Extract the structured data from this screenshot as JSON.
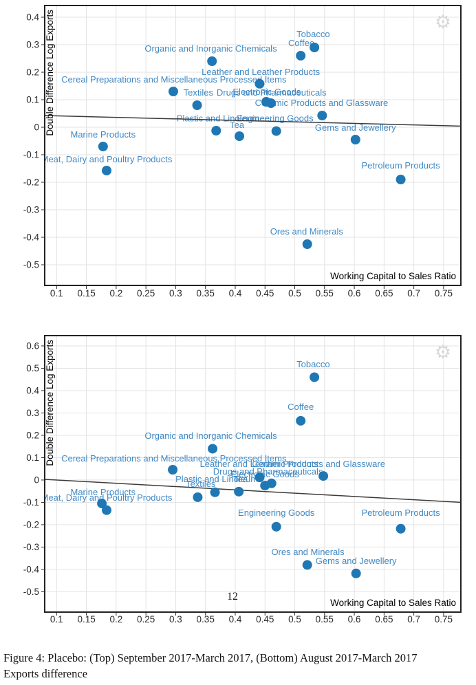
{
  "page": {
    "caption": "Figure 4: Placebo: (Top) September 2017-March 2017, (Bottom) August 2017-March 2017 Exports difference",
    "page_number": "12"
  },
  "icons": {
    "gear_glyph": "⚙"
  },
  "colors": {
    "marker": "#1f77b4",
    "point_label": "#4189c4",
    "trend_line": "#3b3b3b",
    "gridline": "#e3e3e3",
    "plot_border": "#222222",
    "tick_label": "#2a2a2a",
    "axis_title": "#000000",
    "gear": "#d8d8d8",
    "background": "#ffffff"
  },
  "chart_data": [
    {
      "type": "scatter",
      "title": "",
      "ylabel": "Double Difference Log Exports",
      "xlabel": "Working Capital to Sales Ratio",
      "xlim": [
        0.08,
        0.779
      ],
      "ylim": [
        -0.575,
        0.4425
      ],
      "grid": true,
      "xticks": [
        "0.1",
        "0.15",
        "0.2",
        "0.25",
        "0.3",
        "0.35",
        "0.4",
        "0.45",
        "0.5",
        "0.55",
        "0.6",
        "0.65",
        "0.7",
        "0.75"
      ],
      "yticks": [
        "0.4",
        "0.3",
        "0.2",
        "0.1",
        "0",
        "-0.1",
        "-0.2",
        "-0.3",
        "-0.4",
        "-0.5"
      ],
      "trend": {
        "x": [
          0.08,
          0.779
        ],
        "y": [
          0.0425,
          0.004
        ]
      },
      "points": [
        {
          "name": "Tobacco",
          "x": 0.533,
          "y": 0.29,
          "lx": 0.531,
          "ly": 0.3375
        },
        {
          "name": "Coffee",
          "x": 0.51,
          "y": 0.26,
          "lx": 0.511,
          "ly": 0.305
        },
        {
          "name": "Organic and Inorganic Chemicals",
          "x": 0.361,
          "y": 0.24,
          "lx": 0.359,
          "ly": 0.285
        },
        {
          "name": "Leather and Leather Products",
          "x": 0.441,
          "y": 0.158,
          "lx": 0.443,
          "ly": 0.2
        },
        {
          "name": "Cereal Preparations and Miscellaneous Processed Items",
          "x": 0.296,
          "y": 0.13,
          "lx": 0.297,
          "ly": 0.1725
        },
        {
          "name": "Textiles",
          "x": 0.336,
          "y": 0.08,
          "lx": 0.338,
          "ly": 0.125
        },
        {
          "name": "Drugs and Pharmaceuticals",
          "x": 0.452,
          "y": 0.0925,
          "lx": 0.461,
          "ly": 0.125
        },
        {
          "name": "Electronic Goods",
          "x": 0.46,
          "y": 0.0875,
          "lx": 0.453,
          "ly": 0.1275
        },
        {
          "name": "Ceramic Products and Glassware",
          "x": 0.546,
          "y": 0.0425,
          "lx": 0.545,
          "ly": 0.0875
        },
        {
          "name": "Plastic and Linoleum",
          "x": 0.368,
          "y": -0.0125,
          "lx": 0.371,
          "ly": 0.031
        },
        {
          "name": "Engineering Goods",
          "x": 0.469,
          "y": -0.014,
          "lx": 0.467,
          "ly": 0.031
        },
        {
          "name": "Tea",
          "x": 0.407,
          "y": -0.0325,
          "lx": 0.403,
          "ly": 0.0075
        },
        {
          "name": "Marine Products",
          "x": 0.178,
          "y": -0.07,
          "lx": 0.178,
          "ly": -0.0275
        },
        {
          "name": "Meat, Dairy and Poultry Products",
          "x": 0.184,
          "y": -0.1575,
          "lx": 0.184,
          "ly": -0.1175
        },
        {
          "name": "Gems and Jewellery",
          "x": 0.602,
          "y": -0.045,
          "lx": 0.602,
          "ly": -0.0025
        },
        {
          "name": "Petroleum Products",
          "x": 0.678,
          "y": -0.19,
          "lx": 0.678,
          "ly": -0.14
        },
        {
          "name": "Ores and Minerals",
          "x": 0.521,
          "y": -0.425,
          "lx": 0.52,
          "ly": -0.38
        }
      ]
    },
    {
      "type": "scatter",
      "title": "",
      "ylabel": "Double Difference Log Exports",
      "xlabel": "Working Capital to Sales Ratio",
      "xlim": [
        0.08,
        0.779
      ],
      "ylim": [
        -0.591,
        0.646
      ],
      "grid": true,
      "xticks": [
        "0.1",
        "0.15",
        "0.2",
        "0.25",
        "0.3",
        "0.35",
        "0.4",
        "0.45",
        "0.5",
        "0.55",
        "0.6",
        "0.65",
        "0.7",
        "0.75"
      ],
      "yticks": [
        "0.6",
        "0.5",
        "0.4",
        "0.3",
        "0.2",
        "0.1",
        "0",
        "-0.1",
        "-0.2",
        "-0.3",
        "-0.4",
        "-0.5"
      ],
      "trend": {
        "x": [
          0.08,
          0.779
        ],
        "y": [
          0.003,
          -0.1
        ]
      },
      "points": [
        {
          "name": "Tobacco",
          "x": 0.533,
          "y": 0.46,
          "lx": 0.531,
          "ly": 0.517
        },
        {
          "name": "Coffee",
          "x": 0.51,
          "y": 0.265,
          "lx": 0.51,
          "ly": 0.326
        },
        {
          "name": "Organic and Inorganic Chemicals",
          "x": 0.362,
          "y": 0.14,
          "lx": 0.359,
          "ly": 0.197
        },
        {
          "name": "Cereal Preparations and Miscellaneous Processed Items",
          "x": 0.295,
          "y": 0.046,
          "lx": 0.297,
          "ly": 0.095
        },
        {
          "name": "Leather and Leather Products",
          "x": 0.441,
          "y": 0.012,
          "lx": 0.44,
          "ly": 0.071
        },
        {
          "name": "Ceramic Products and Glassware",
          "x": 0.548,
          "y": 0.018,
          "lx": 0.54,
          "ly": 0.071
        },
        {
          "name": "Drugs and Pharmaceuticals",
          "x": 0.45,
          "y": -0.025,
          "lx": 0.455,
          "ly": 0.037
        },
        {
          "name": "Electronic Goods",
          "x": 0.461,
          "y": -0.015,
          "lx": 0.45,
          "ly": 0.025
        },
        {
          "name": "Plastic and Linoleum",
          "x": 0.366,
          "y": -0.055,
          "lx": 0.369,
          "ly": 0.003
        },
        {
          "name": "Tea",
          "x": 0.406,
          "y": -0.052,
          "lx": 0.409,
          "ly": 0.003
        },
        {
          "name": "Textiles",
          "x": 0.337,
          "y": -0.077,
          "lx": 0.342,
          "ly": -0.018
        },
        {
          "name": "Marine Products",
          "x": 0.176,
          "y": -0.105,
          "lx": 0.178,
          "ly": -0.055
        },
        {
          "name": "Meat, Dairy and Poultry Products",
          "x": 0.184,
          "y": -0.135,
          "lx": 0.184,
          "ly": -0.08
        },
        {
          "name": "Engineering Goods",
          "x": 0.469,
          "y": -0.209,
          "lx": 0.469,
          "ly": -0.148
        },
        {
          "name": "Petroleum Products",
          "x": 0.678,
          "y": -0.218,
          "lx": 0.678,
          "ly": -0.148
        },
        {
          "name": "Ores and Minerals",
          "x": 0.521,
          "y": -0.38,
          "lx": 0.522,
          "ly": -0.323
        },
        {
          "name": "Gems and Jewellery",
          "x": 0.603,
          "y": -0.418,
          "lx": 0.603,
          "ly": -0.363
        }
      ]
    }
  ]
}
